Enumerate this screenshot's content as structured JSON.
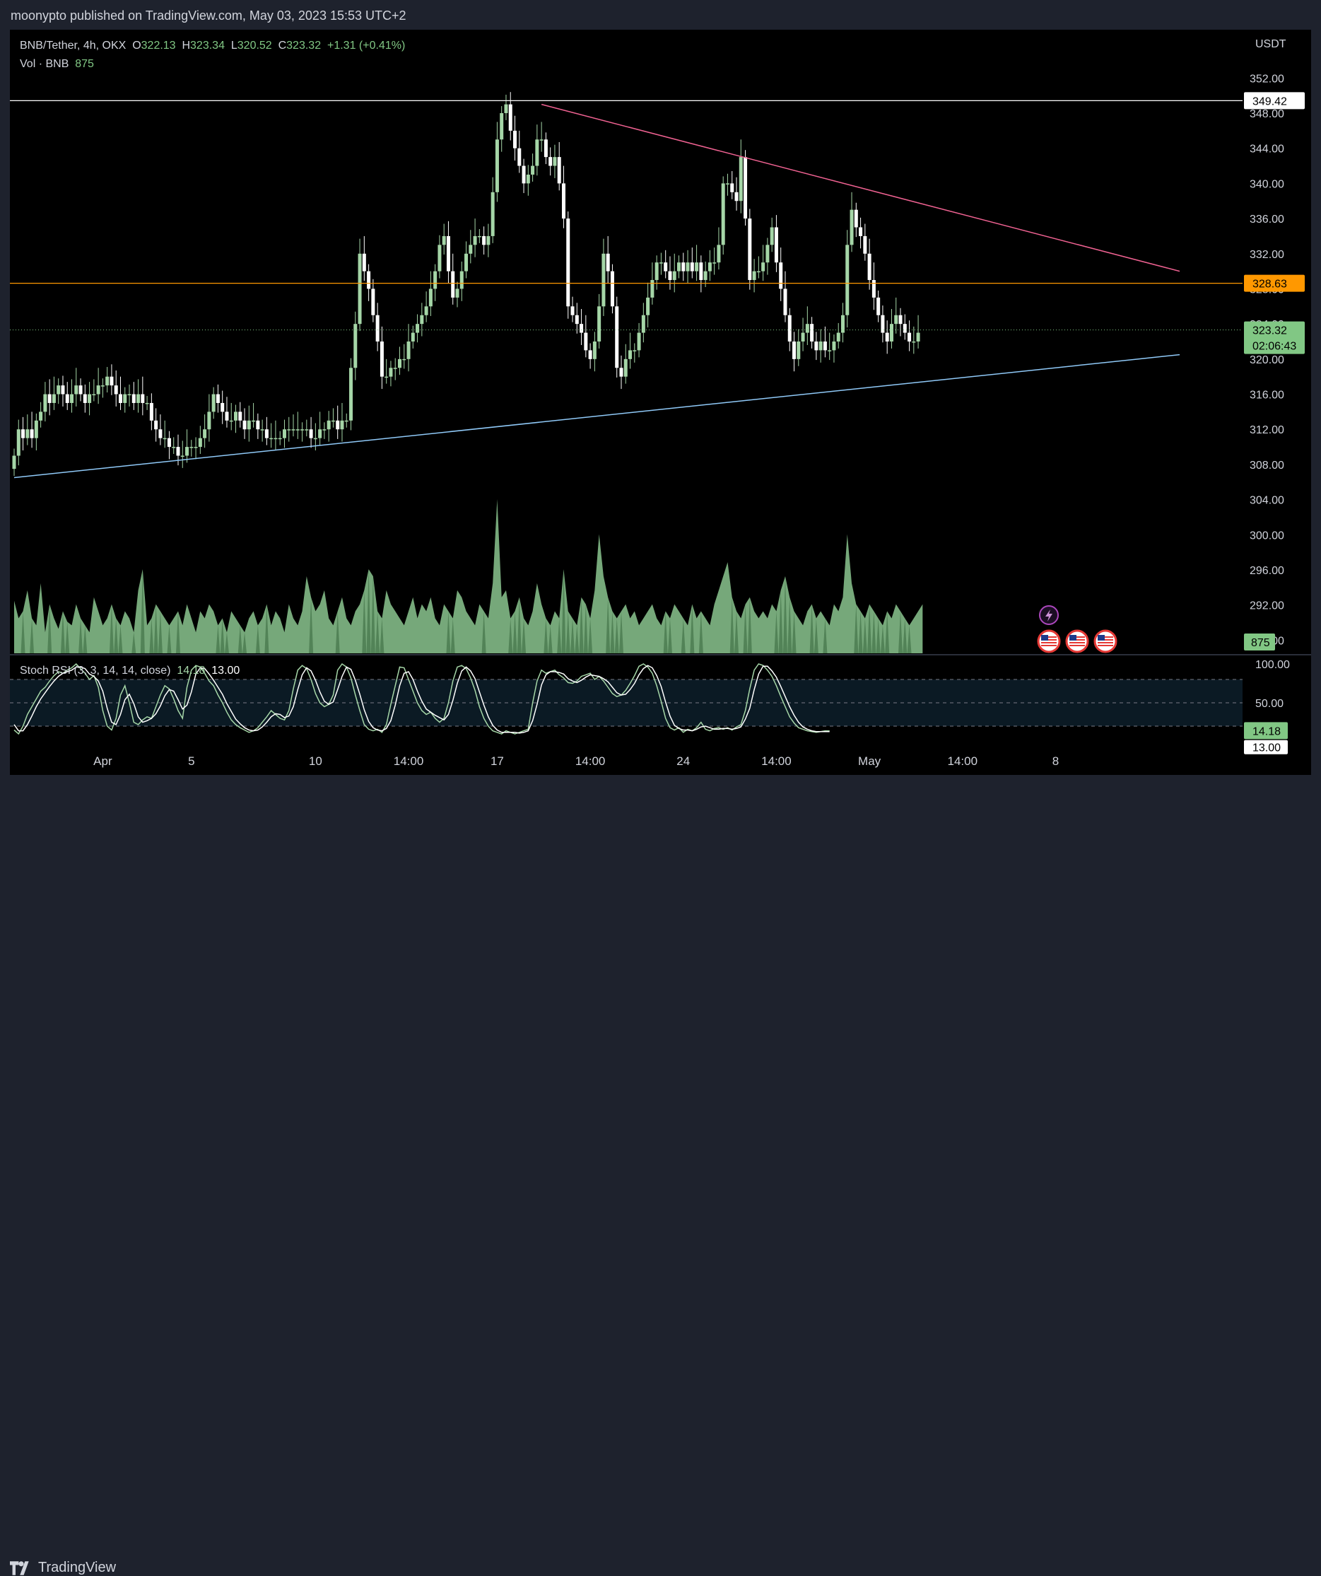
{
  "header": {
    "publish_text": "moonypto published on TradingView.com, May 03, 2023 15:53 UTC+2"
  },
  "footer": {
    "logo_text": "TradingView"
  },
  "legend": {
    "symbol": "BNB/Tether, 4h, OKX",
    "open_label": "O",
    "open": "322.13",
    "high_label": "H",
    "high": "323.34",
    "low_label": "L",
    "low": "320.52",
    "close_label": "C",
    "close": "323.32",
    "change": "+1.31 (+0.41%)",
    "vol_label": "Vol · BNB",
    "vol_value": "875"
  },
  "stoch_legend": {
    "label": "Stoch RSI (3, 3, 14, 14, close)",
    "k": "14.18",
    "d": "13.00"
  },
  "colors": {
    "up": "#a5d6a7",
    "down": "#ffffff",
    "resistance_line": "#ffffff",
    "level_line": "#ff9800",
    "downtrend_line": "#f06292",
    "uptrend_line": "#90caf9",
    "stoch_k": "#a5d6a7",
    "stoch_d": "#ffffff",
    "background": "#000000"
  },
  "chart_data": [
    {
      "type": "candlestick",
      "symbol": "BNB/Tether",
      "interval": "4h",
      "exchange": "OKX",
      "currency_label": "USDT",
      "y_ticks": [
        "352.00",
        "348.00",
        "344.00",
        "340.00",
        "336.00",
        "332.00",
        "328.00",
        "324.00",
        "320.00",
        "316.00",
        "312.00",
        "308.00",
        "304.00",
        "300.00",
        "296.00",
        "292.00",
        "288.00"
      ],
      "ylim": [
        286.5,
        357.5
      ],
      "x_ticks": [
        {
          "label": "Apr",
          "i": 20
        },
        {
          "label": "5",
          "i": 40
        },
        {
          "label": "10",
          "i": 68
        },
        {
          "label": "14:00",
          "i": 89
        },
        {
          "label": "17",
          "i": 109
        },
        {
          "label": "14:00",
          "i": 130
        },
        {
          "label": "24",
          "i": 151
        },
        {
          "label": "14:00",
          "i": 172
        },
        {
          "label": "May",
          "i": 193
        },
        {
          "label": "14:00",
          "i": 214
        },
        {
          "label": "8",
          "i": 235
        }
      ],
      "price_labels": [
        {
          "value": "349.42",
          "price": 349.42,
          "style": "white"
        },
        {
          "value": "328.63",
          "price": 328.63,
          "style": "orange"
        },
        {
          "value": "323.32",
          "price": 323.32,
          "sub": "02:06:43",
          "style": "green"
        }
      ],
      "horizontal_lines": [
        349.42,
        328.63
      ],
      "trendlines": [
        {
          "name": "downtrend",
          "from": {
            "i": 119,
            "price": 349.0
          },
          "to": {
            "i": 263,
            "price": 330.0
          }
        },
        {
          "name": "uptrend",
          "from": {
            "i": 0,
            "price": 306.5
          },
          "to": {
            "i": 263,
            "price": 320.5
          }
        }
      ],
      "candles_close": [
        309,
        312,
        311,
        312,
        311,
        313,
        314,
        316,
        315,
        316,
        317,
        316,
        315,
        316,
        317,
        316,
        315,
        316,
        316,
        317,
        317,
        318,
        317,
        316,
        315,
        316,
        316,
        315,
        316,
        315,
        315,
        313,
        312,
        311,
        311,
        310,
        310,
        309,
        309,
        310,
        310,
        310,
        311,
        312,
        314,
        316,
        315,
        314,
        313,
        313,
        314,
        313,
        312,
        313,
        313,
        312,
        312,
        311,
        311,
        311,
        311,
        312,
        312,
        312,
        312,
        312,
        312,
        311,
        311,
        312,
        312,
        313,
        313,
        312,
        313,
        313,
        319,
        324,
        332,
        330,
        328,
        325,
        322,
        318,
        318,
        319,
        319,
        320,
        320,
        322,
        323,
        324,
        325,
        326,
        328,
        330,
        333,
        334,
        330,
        327,
        328,
        330,
        332,
        333,
        334,
        334,
        333,
        334,
        339,
        345,
        348,
        349,
        346,
        344,
        342,
        340,
        341,
        342,
        345,
        345,
        343,
        342,
        343,
        340,
        336,
        326,
        325,
        324,
        323,
        321,
        320,
        322,
        326,
        332,
        330,
        326,
        319,
        318,
        320,
        321,
        321,
        323,
        325,
        327,
        329,
        331,
        331,
        330,
        329,
        330,
        331,
        330,
        331,
        330,
        331,
        329,
        330,
        331,
        331,
        333,
        340,
        340,
        339,
        338,
        343,
        336,
        329,
        330,
        330,
        331,
        333,
        335,
        331,
        328,
        325,
        322,
        320,
        322,
        323,
        324,
        322,
        321,
        322,
        321,
        321,
        322,
        323,
        325,
        333,
        337,
        335,
        334,
        332,
        329,
        327,
        325,
        323,
        322,
        324,
        325,
        324,
        323,
        322,
        322,
        323
      ],
      "volume": [
        15,
        10,
        12,
        18,
        10,
        8,
        20,
        6,
        14,
        10,
        7,
        12,
        9,
        8,
        14,
        10,
        8,
        6,
        16,
        12,
        8,
        10,
        14,
        10,
        8,
        12,
        10,
        6,
        18,
        24,
        8,
        10,
        14,
        12,
        10,
        8,
        10,
        12,
        8,
        14,
        10,
        6,
        12,
        10,
        14,
        12,
        8,
        10,
        6,
        12,
        10,
        8,
        6,
        10,
        12,
        8,
        10,
        14,
        8,
        12,
        10,
        6,
        14,
        10,
        8,
        12,
        22,
        16,
        12,
        14,
        18,
        10,
        8,
        12,
        16,
        10,
        8,
        12,
        14,
        18,
        24,
        22,
        12,
        10,
        18,
        14,
        12,
        10,
        8,
        12,
        16,
        10,
        14,
        12,
        16,
        10,
        8,
        14,
        12,
        10,
        18,
        16,
        12,
        10,
        8,
        14,
        12,
        10,
        20,
        44,
        16,
        18,
        10,
        12,
        16,
        10,
        8,
        12,
        20,
        14,
        10,
        8,
        12,
        10,
        24,
        12,
        10,
        8,
        16,
        14,
        10,
        18,
        34,
        22,
        16,
        12,
        10,
        12,
        14,
        10,
        12,
        8,
        10,
        12,
        14,
        10,
        8,
        12,
        10,
        14,
        12,
        10,
        8,
        14,
        10,
        12,
        10,
        8,
        14,
        18,
        22,
        26,
        16,
        12,
        10,
        14,
        16,
        12,
        10,
        12,
        10,
        14,
        12,
        18,
        22,
        16,
        12,
        10,
        8,
        12,
        14,
        10,
        12,
        10,
        8,
        14,
        12,
        16,
        34,
        20,
        14,
        12,
        10,
        14,
        12,
        10,
        8,
        12,
        10,
        14,
        12,
        10,
        8,
        10,
        12,
        14
      ],
      "volume_last": 875
    },
    {
      "type": "line",
      "name": "Stoch RSI (3, 3, 14, 14, close)",
      "y_ticks": [
        "100.00",
        "50.00"
      ],
      "bands": [
        80,
        20
      ],
      "ylim": [
        -10,
        110
      ],
      "k_last": 14.18,
      "d_last": 13.0,
      "k": [
        15,
        10,
        20,
        35,
        45,
        55,
        65,
        70,
        78,
        85,
        90,
        88,
        92,
        95,
        100,
        94,
        88,
        80,
        85,
        70,
        40,
        20,
        15,
        30,
        60,
        72,
        50,
        25,
        22,
        28,
        32,
        30,
        45,
        60,
        72,
        68,
        55,
        40,
        30,
        70,
        92,
        98,
        96,
        88,
        78,
        72,
        60,
        50,
        38,
        28,
        22,
        18,
        15,
        12,
        14,
        18,
        25,
        32,
        40,
        35,
        30,
        28,
        40,
        68,
        92,
        98,
        94,
        80,
        62,
        50,
        45,
        48,
        60,
        92,
        100,
        96,
        82,
        60,
        40,
        22,
        16,
        14,
        16,
        12,
        22,
        48,
        72,
        96,
        95,
        80,
        65,
        50,
        40,
        35,
        38,
        30,
        25,
        30,
        50,
        78,
        96,
        98,
        94,
        82,
        66,
        45,
        30,
        20,
        14,
        12,
        10,
        14,
        12,
        10,
        12,
        14,
        16,
        50,
        78,
        92,
        88,
        90,
        92,
        86,
        82,
        76,
        75,
        78,
        84,
        86,
        88,
        80,
        84,
        78,
        70,
        62,
        58,
        60,
        66,
        75,
        85,
        97,
        100,
        96,
        88,
        72,
        52,
        30,
        18,
        15,
        18,
        12,
        16,
        14,
        18,
        25,
        16,
        14,
        17,
        18,
        16,
        18,
        15,
        19,
        22,
        40,
        68,
        92,
        100,
        98,
        92,
        84,
        72,
        58,
        45,
        32,
        24,
        18,
        16,
        14,
        13,
        12,
        13,
        14,
        14
      ],
      "d": [
        22,
        14,
        14,
        22,
        33,
        45,
        55,
        63,
        71,
        78,
        84,
        88,
        90,
        92,
        96,
        96,
        94,
        87,
        84,
        78,
        65,
        43,
        25,
        22,
        35,
        54,
        61,
        49,
        32,
        25,
        27,
        30,
        36,
        46,
        59,
        67,
        65,
        54,
        42,
        47,
        64,
        87,
        95,
        94,
        87,
        79,
        70,
        61,
        49,
        39,
        29,
        23,
        18,
        15,
        14,
        15,
        19,
        25,
        32,
        36,
        35,
        31,
        33,
        45,
        67,
        86,
        95,
        91,
        79,
        64,
        52,
        48,
        51,
        67,
        84,
        96,
        93,
        79,
        61,
        41,
        26,
        18,
        15,
        14,
        17,
        27,
        47,
        72,
        88,
        90,
        80,
        65,
        52,
        42,
        38,
        34,
        31,
        28,
        35,
        53,
        75,
        91,
        96,
        91,
        81,
        64,
        47,
        32,
        21,
        15,
        12,
        12,
        12,
        12,
        11,
        12,
        14,
        27,
        48,
        73,
        86,
        90,
        90,
        89,
        87,
        81,
        78,
        76,
        79,
        83,
        86,
        85,
        84,
        81,
        77,
        70,
        63,
        60,
        61,
        67,
        75,
        86,
        94,
        98,
        95,
        85,
        71,
        51,
        33,
        21,
        17,
        15,
        15,
        14,
        16,
        19,
        20,
        18,
        16,
        16,
        17,
        17,
        16,
        17,
        19,
        29,
        43,
        67,
        87,
        97,
        97,
        91,
        83,
        71,
        58,
        45,
        34,
        25,
        19,
        16,
        14,
        13,
        13,
        13,
        13
      ]
    }
  ]
}
